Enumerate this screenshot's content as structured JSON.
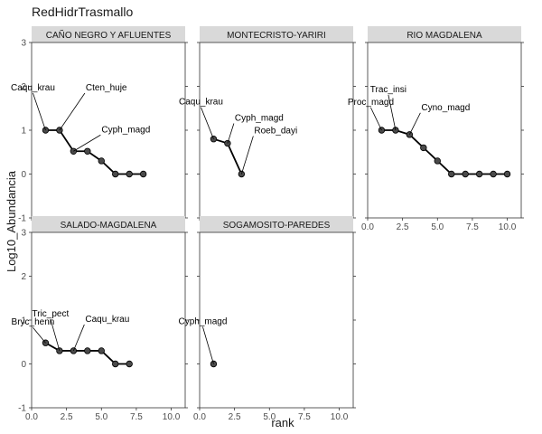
{
  "chart_data": {
    "type": "line",
    "title": "RedHidrTrasmallo",
    "xlabel": "rank",
    "ylabel": "Log10_Abundancia",
    "xlim": [
      0,
      11
    ],
    "ylim": [
      -1,
      3
    ],
    "x_ticks": [
      0,
      2.5,
      5,
      7.5,
      10
    ],
    "x_tick_labels": [
      "0.0",
      "2.5",
      "5.0",
      "7.5",
      "10.0"
    ],
    "y_ticks": [
      -1,
      0,
      1,
      2,
      3
    ],
    "y_tick_labels": [
      "-1",
      "0",
      "1",
      "2",
      "3"
    ],
    "grid": false,
    "facets": [
      {
        "name": "CAÑO NEGRO Y AFLUENTES",
        "x": [
          1,
          2,
          3,
          4,
          5,
          6,
          7,
          8
        ],
        "y": [
          1.0,
          1.0,
          0.52,
          0.52,
          0.3,
          0.0,
          0.0,
          0.0
        ],
        "labels": [
          {
            "text": "Caqu_krau",
            "rank": 1
          },
          {
            "text": "Cten_huje",
            "rank": 2
          },
          {
            "text": "Cyph_magd",
            "rank": 3
          }
        ]
      },
      {
        "name": "MONTECRISTO-YARIRI",
        "x": [
          1,
          2,
          3
        ],
        "y": [
          0.8,
          0.7,
          0.0
        ],
        "labels": [
          {
            "text": "Caqu_krau",
            "rank": 1
          },
          {
            "text": "Cyph_magd",
            "rank": 2
          },
          {
            "text": "Roeb_dayi",
            "rank": 3
          }
        ]
      },
      {
        "name": "RIO MAGDALENA",
        "x": [
          1,
          2,
          3,
          4,
          5,
          6,
          7,
          8,
          9,
          10
        ],
        "y": [
          1.0,
          1.0,
          0.9,
          0.6,
          0.3,
          0.0,
          0.0,
          0.0,
          0.0,
          0.0
        ],
        "labels": [
          {
            "text": "Proc_magd",
            "rank": 1
          },
          {
            "text": "Trac_insi",
            "rank": 2
          },
          {
            "text": "Cyno_magd",
            "rank": 3
          }
        ]
      },
      {
        "name": "SALADO-MAGDALENA",
        "x": [
          1,
          2,
          3,
          4,
          5,
          6,
          7
        ],
        "y": [
          0.48,
          0.3,
          0.3,
          0.3,
          0.3,
          0.0,
          0.0
        ],
        "labels": [
          {
            "text": "Bryc_henn",
            "rank": 1
          },
          {
            "text": "Tric_pect",
            "rank": 2
          },
          {
            "text": "Caqu_krau",
            "rank": 3
          }
        ]
      },
      {
        "name": "SOGAMOSITO-PAREDES",
        "x": [
          1
        ],
        "y": [
          0.0
        ],
        "labels": [
          {
            "text": "Cyph_magd",
            "rank": 1
          }
        ]
      }
    ]
  }
}
